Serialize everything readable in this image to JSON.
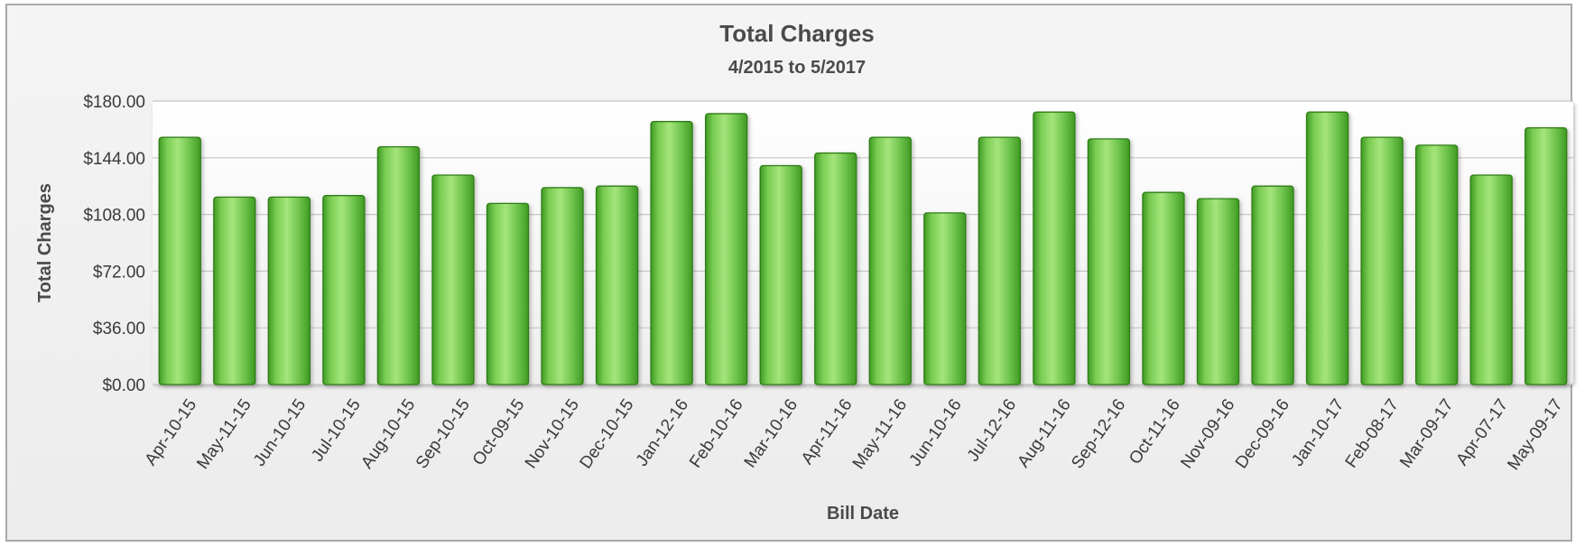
{
  "chart_data": {
    "type": "bar",
    "title": "Total Charges",
    "subtitle": "4/2015 to 5/2017",
    "xlabel": "Bill Date",
    "ylabel": "Total Charges",
    "ylim": [
      0,
      180
    ],
    "yticks": [
      "$0.00",
      "$36.00",
      "$72.00",
      "$108.00",
      "$144.00",
      "$180.00"
    ],
    "grid": true,
    "legend": "none",
    "categories": [
      "Apr-10-15",
      "May-11-15",
      "Jun-10-15",
      "Jul-10-15",
      "Aug-10-15",
      "Sep-10-15",
      "Oct-09-15",
      "Nov-10-15",
      "Dec-10-15",
      "Jan-12-16",
      "Feb-10-16",
      "Mar-10-16",
      "Apr-11-16",
      "May-11-16",
      "Jun-10-16",
      "Jul-12-16",
      "Aug-11-16",
      "Sep-12-16",
      "Oct-11-16",
      "Nov-09-16",
      "Dec-09-16",
      "Jan-10-17",
      "Feb-08-17",
      "Mar-09-17",
      "Apr-07-17",
      "May-09-17"
    ],
    "values": [
      157,
      119,
      119,
      120,
      151,
      133,
      115,
      125,
      126,
      167,
      172,
      139,
      147,
      157,
      109,
      157,
      173,
      156,
      122,
      118,
      126,
      173,
      157,
      152,
      133,
      163
    ],
    "bar_color": "#6cc24a"
  }
}
